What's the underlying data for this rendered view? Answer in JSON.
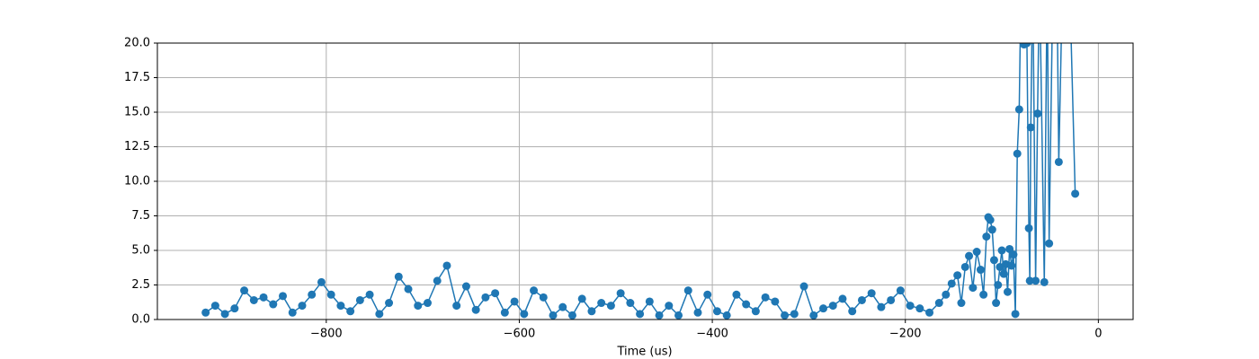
{
  "chart_data": {
    "type": "line",
    "xlabel": "Time (us)",
    "x": [
      -925,
      -915,
      -905,
      -895,
      -885,
      -875,
      -865,
      -855,
      -845,
      -835,
      -825,
      -815,
      -805,
      -795,
      -785,
      -775,
      -765,
      -755,
      -745,
      -735,
      -725,
      -715,
      -705,
      -695,
      -685,
      -675,
      -665,
      -655,
      -645,
      -635,
      -625,
      -615,
      -605,
      -595,
      -585,
      -575,
      -565,
      -555,
      -545,
      -535,
      -525,
      -515,
      -505,
      -495,
      -485,
      -475,
      -465,
      -455,
      -445,
      -435,
      -425,
      -415,
      -405,
      -395,
      -385,
      -375,
      -365,
      -355,
      -345,
      -335,
      -325,
      -315,
      -305,
      -295,
      -285,
      -275,
      -265,
      -255,
      -245,
      -235,
      -225,
      -215,
      -205,
      -195,
      -185,
      -175,
      -165,
      -158,
      -152,
      -146,
      -142,
      -138,
      -134,
      -130,
      -126,
      -122,
      -119,
      -116,
      -114,
      -112,
      -110,
      -108,
      -106,
      -104,
      -102,
      -100,
      -98,
      -96,
      -94,
      -92,
      -90,
      -88,
      -86,
      -84,
      -82,
      -80,
      -77,
      -74,
      -72,
      -71,
      -70,
      -68,
      -65,
      -63,
      -61,
      -56,
      -53,
      -51,
      -47,
      -43,
      -41,
      -37,
      -30,
      -24
    ],
    "series": [
      {
        "color": "#1f77b4",
        "values": [
          0.5,
          1.0,
          0.4,
          0.8,
          2.1,
          1.4,
          1.6,
          1.1,
          1.7,
          0.5,
          1.0,
          1.8,
          2.7,
          1.8,
          1.0,
          0.6,
          1.4,
          1.8,
          0.4,
          1.2,
          3.1,
          2.2,
          1.0,
          1.2,
          2.8,
          3.9,
          1.0,
          2.4,
          0.7,
          1.6,
          1.9,
          0.5,
          1.3,
          0.4,
          2.1,
          1.6,
          0.3,
          0.9,
          0.3,
          1.5,
          0.6,
          1.2,
          1.0,
          1.9,
          1.2,
          0.4,
          1.3,
          0.3,
          1.0,
          0.3,
          2.1,
          0.5,
          1.8,
          0.6,
          0.3,
          1.8,
          1.1,
          0.6,
          1.6,
          1.3,
          0.3,
          0.4,
          2.4,
          0.3,
          0.8,
          1.0,
          1.5,
          0.6,
          1.4,
          1.9,
          0.9,
          1.4,
          2.1,
          1.0,
          0.8,
          0.5,
          1.2,
          1.8,
          2.6,
          3.2,
          1.2,
          3.8,
          4.6,
          2.3,
          4.9,
          3.6,
          1.8,
          6.0,
          7.4,
          7.2,
          6.5,
          4.3,
          1.2,
          2.5,
          3.8,
          5.0,
          3.3,
          4.0,
          2.0,
          5.1,
          3.9,
          4.7,
          0.4,
          12.0,
          15.2,
          25,
          19.9,
          20,
          6.6,
          2.8,
          13.9,
          25,
          2.8,
          14.9,
          25,
          2.7,
          25,
          5.5,
          25,
          25,
          11.4,
          25,
          25,
          9.1
        ]
      }
    ],
    "xlim": [
      -975,
      36
    ],
    "ylim": [
      0,
      20
    ],
    "xticks": [
      {
        "value": -800,
        "label": "−800"
      },
      {
        "value": -600,
        "label": "−600"
      },
      {
        "value": -400,
        "label": "−400"
      },
      {
        "value": -200,
        "label": "−200"
      },
      0
    ],
    "yticks": [
      {
        "value": 0,
        "label": "0.0"
      },
      {
        "value": 2.5,
        "label": "2.5"
      },
      {
        "value": 5,
        "label": "5.0"
      },
      {
        "value": 7.5,
        "label": "7.5"
      },
      {
        "value": 10,
        "label": "10.0"
      },
      {
        "value": 12.5,
        "label": "12.5"
      },
      {
        "value": 15,
        "label": "15.0"
      },
      {
        "value": 17.5,
        "label": "17.5"
      },
      {
        "value": 20,
        "label": "20.0"
      }
    ],
    "grid": true
  }
}
